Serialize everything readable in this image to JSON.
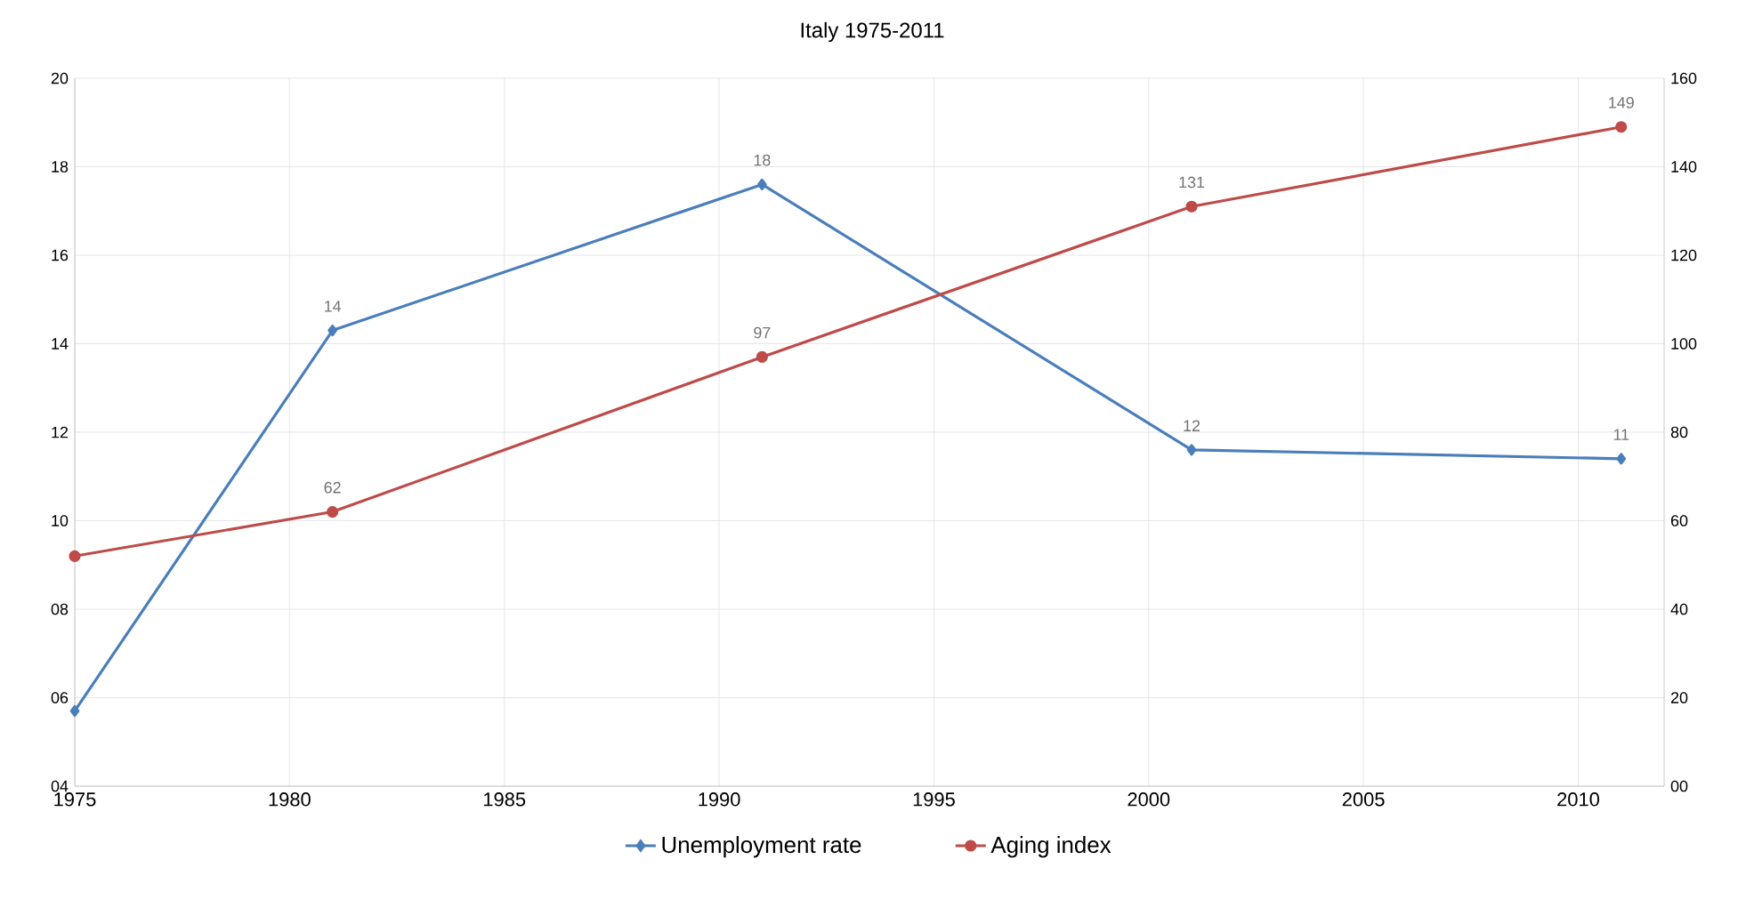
{
  "chart_data": {
    "type": "line",
    "title": "Italy 1975-2011",
    "x": [
      1975,
      1981,
      1991,
      2001,
      2011
    ],
    "series": [
      {
        "name": "Unemployment rate",
        "color": "#4a7ebb",
        "marker": "diamond",
        "values": [
          5.7,
          14.3,
          17.6,
          11.6,
          11.4
        ],
        "value_labels": [
          null,
          "14",
          "18",
          "12",
          "11"
        ]
      },
      {
        "name": "Aging index",
        "color": "#be4b48",
        "marker": "circle",
        "axis": "y2",
        "values": [
          52,
          62,
          97,
          131,
          149
        ],
        "value_labels": [
          null,
          "62",
          "97",
          "131",
          "149"
        ]
      }
    ],
    "xlim": [
      1975,
      2012
    ],
    "xticks": [
      1975,
      1980,
      1985,
      1990,
      1995,
      2000,
      2005,
      2010
    ],
    "ylim": [
      4,
      20
    ],
    "yticks": [
      {
        "value": 4,
        "label": "04"
      },
      {
        "value": 6,
        "label": "06"
      },
      {
        "value": 8,
        "label": "08"
      },
      10,
      12,
      14,
      16,
      18,
      20
    ],
    "y2lim": [
      0,
      160
    ],
    "y2ticks": [
      {
        "value": 0,
        "label": "00"
      },
      20,
      40,
      60,
      80,
      100,
      120,
      140,
      160
    ],
    "grid": true,
    "legend": "bottom"
  }
}
